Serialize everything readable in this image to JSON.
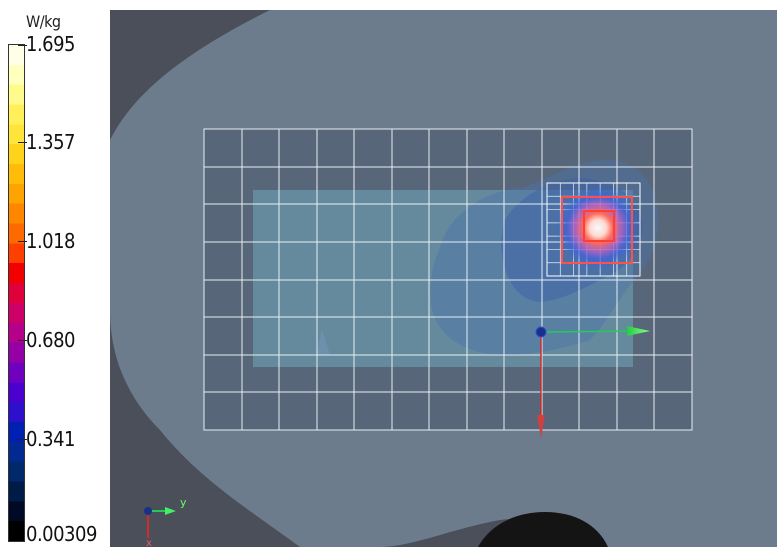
{
  "legend": {
    "unit": "W/kg",
    "ticks": [
      "1.695",
      "1.357",
      "1.018",
      "0.680",
      "0.341",
      "0.00309"
    ],
    "colors": [
      "#fffee6",
      "#ffffbe",
      "#fffb8a",
      "#fff05a",
      "#ffe43a",
      "#ffd21c",
      "#ffbd0a",
      "#ffa300",
      "#ff8700",
      "#ff6a00",
      "#ff3f00",
      "#f20000",
      "#e0003a",
      "#cc0066",
      "#b4008a",
      "#9400a6",
      "#7000c0",
      "#4c00d0",
      "#2c10cc",
      "#0020b4",
      "#002a90",
      "#00296c",
      "#001b48",
      "#000a24",
      "#000000"
    ]
  },
  "scene": {
    "axis_triad": {
      "y_label": "y",
      "x_label": "x"
    }
  },
  "colors": {
    "background": "#4a4f59",
    "phantom": "#6b7b8c",
    "grid_line": "#e8eef5",
    "zoom_box": "#ff5050"
  }
}
